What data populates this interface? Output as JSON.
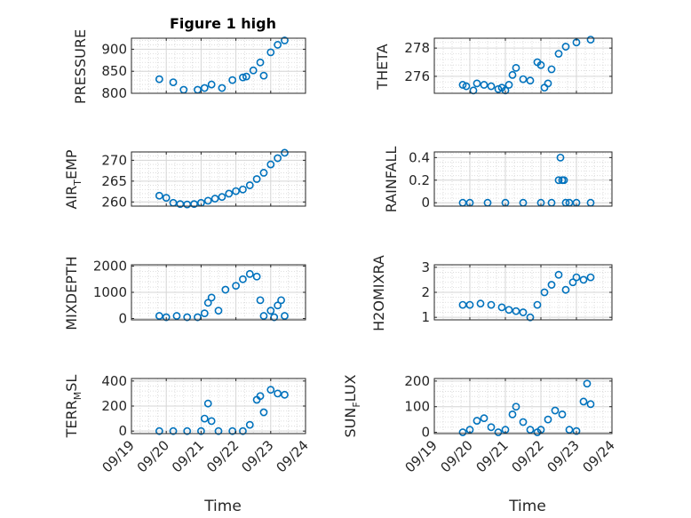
{
  "figure": {
    "title": "Figure 1 high",
    "xlabel": "Time"
  },
  "colors": {
    "marker": "#0072BD",
    "axes": "#262626",
    "grid": "#d6d6d6"
  },
  "x_ticks": [
    "09/19",
    "09/20",
    "09/21",
    "09/22",
    "09/23",
    "09/24"
  ],
  "chart_data": [
    {
      "type": "scatter",
      "title": "Figure 1 high",
      "ylabel": "PRESSURE",
      "ylim": [
        800,
        925
      ],
      "yticks": [
        800,
        850,
        900
      ],
      "grid": true,
      "x": [
        19.8,
        20.2,
        20.5,
        20.9,
        21.1,
        21.3,
        21.6,
        21.9,
        22.2,
        22.3,
        22.5,
        22.7,
        22.8,
        23.0,
        23.2,
        23.4
      ],
      "y": [
        832,
        825,
        808,
        808,
        812,
        820,
        812,
        830,
        836,
        838,
        852,
        870,
        840,
        893,
        910,
        920
      ]
    },
    {
      "type": "scatter",
      "ylabel": "THETA",
      "ylim": [
        274.8,
        278.7
      ],
      "yticks": [
        276,
        278
      ],
      "grid": true,
      "x": [
        19.8,
        19.9,
        20.1,
        20.2,
        20.4,
        20.6,
        20.8,
        20.9,
        21.0,
        21.1,
        21.2,
        21.3,
        21.5,
        21.7,
        21.9,
        22.0,
        22.1,
        22.2,
        22.3,
        22.5,
        22.7,
        23.0,
        23.4
      ],
      "y": [
        275.4,
        275.3,
        275.0,
        275.5,
        275.4,
        275.3,
        275.1,
        275.2,
        275.0,
        275.4,
        276.1,
        276.6,
        275.8,
        275.7,
        277.0,
        276.8,
        275.2,
        275.5,
        276.5,
        277.6,
        278.1,
        278.4,
        278.6
      ]
    },
    {
      "type": "scatter",
      "ylabel": "AIR_TEMP",
      "ylim": [
        259,
        272
      ],
      "yticks": [
        260,
        265,
        270
      ],
      "grid": true,
      "x": [
        19.8,
        20.0,
        20.2,
        20.4,
        20.6,
        20.8,
        21.0,
        21.2,
        21.4,
        21.6,
        21.8,
        22.0,
        22.2,
        22.4,
        22.6,
        22.8,
        23.0,
        23.2,
        23.4
      ],
      "y": [
        261.5,
        261.0,
        259.8,
        259.5,
        259.4,
        259.5,
        259.8,
        260.3,
        260.8,
        261.2,
        262.0,
        262.6,
        263.0,
        264.0,
        265.5,
        267.0,
        269.0,
        270.5,
        271.8
      ]
    },
    {
      "type": "scatter",
      "ylabel": "RAINFALL",
      "ylim": [
        -0.03,
        0.45
      ],
      "yticks": [
        0,
        0.2,
        0.4
      ],
      "grid": true,
      "x": [
        19.8,
        20.0,
        20.5,
        21.0,
        21.5,
        22.0,
        22.3,
        22.5,
        22.55,
        22.6,
        22.65,
        22.7,
        22.8,
        23.0,
        23.4
      ],
      "y": [
        0,
        0,
        0,
        0,
        0,
        0,
        0,
        0.2,
        0.4,
        0.2,
        0.2,
        0,
        0,
        0,
        0
      ]
    },
    {
      "type": "scatter",
      "ylabel": "MIXDEPTH",
      "ylim": [
        -50,
        2050
      ],
      "yticks": [
        0,
        1000,
        2000
      ],
      "grid": true,
      "x": [
        19.8,
        20.0,
        20.3,
        20.6,
        20.9,
        21.1,
        21.2,
        21.3,
        21.5,
        21.7,
        22.0,
        22.2,
        22.4,
        22.6,
        22.7,
        22.8,
        23.0,
        23.1,
        23.2,
        23.3,
        23.4
      ],
      "y": [
        100,
        50,
        100,
        50,
        50,
        200,
        600,
        800,
        300,
        1100,
        1250,
        1500,
        1700,
        1600,
        700,
        100,
        300,
        50,
        500,
        700,
        100
      ]
    },
    {
      "type": "scatter",
      "ylabel": "H2OMIXRA",
      "ylim": [
        0.9,
        3.1
      ],
      "yticks": [
        1,
        2,
        3
      ],
      "grid": true,
      "x": [
        19.8,
        20.0,
        20.3,
        20.6,
        20.9,
        21.1,
        21.3,
        21.5,
        21.7,
        21.9,
        22.1,
        22.3,
        22.5,
        22.7,
        22.9,
        23.0,
        23.2,
        23.4
      ],
      "y": [
        1.5,
        1.5,
        1.55,
        1.5,
        1.4,
        1.3,
        1.25,
        1.2,
        1.0,
        1.5,
        2.0,
        2.3,
        2.7,
        2.1,
        2.4,
        2.6,
        2.5,
        2.6
      ]
    },
    {
      "type": "scatter",
      "ylabel": "TERR_MSL",
      "ylim": [
        -20,
        420
      ],
      "yticks": [
        0,
        200,
        400
      ],
      "grid": true,
      "x": [
        19.8,
        20.2,
        20.6,
        21.0,
        21.1,
        21.2,
        21.3,
        21.5,
        21.9,
        22.2,
        22.4,
        22.6,
        22.7,
        22.8,
        23.0,
        23.2,
        23.4
      ],
      "y": [
        0,
        0,
        0,
        0,
        100,
        220,
        80,
        0,
        0,
        0,
        50,
        250,
        280,
        150,
        330,
        300,
        290
      ]
    },
    {
      "type": "scatter",
      "ylabel": "SUN_FLUX",
      "ylim": [
        -5,
        210
      ],
      "yticks": [
        0,
        100,
        200
      ],
      "grid": true,
      "x": [
        19.8,
        20.0,
        20.2,
        20.4,
        20.6,
        20.8,
        21.0,
        21.2,
        21.3,
        21.5,
        21.7,
        21.9,
        22.0,
        22.2,
        22.4,
        22.6,
        22.8,
        23.0,
        23.2,
        23.3,
        23.4
      ],
      "y": [
        0,
        10,
        45,
        55,
        20,
        0,
        10,
        70,
        100,
        40,
        10,
        0,
        10,
        50,
        85,
        70,
        10,
        5,
        120,
        190,
        110
      ]
    }
  ]
}
